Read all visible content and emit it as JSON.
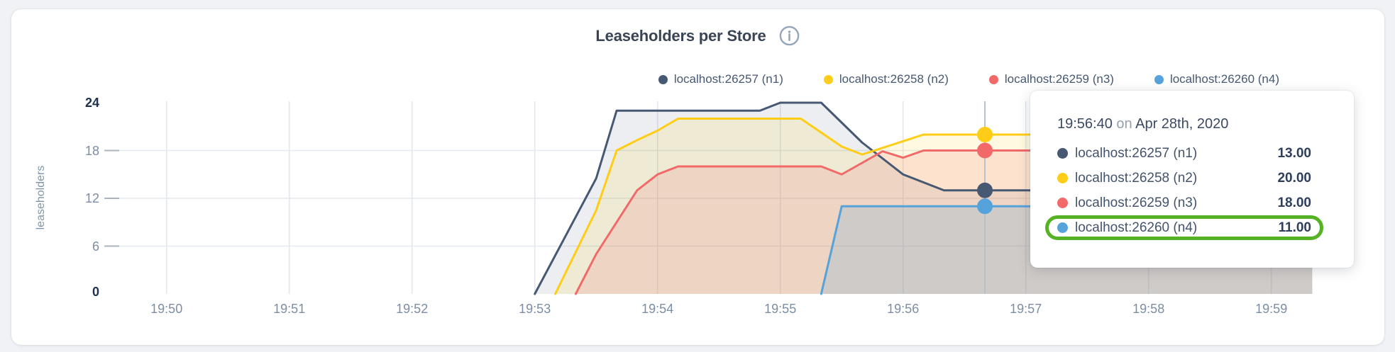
{
  "page": {
    "background": "#F0F2F5"
  },
  "chart": {
    "title": "Leaseholders per Store",
    "y_axis_title": "leaseholders",
    "info_icon_color": "#95A5BC"
  },
  "chart_data": {
    "type": "area",
    "title": "Leaseholders per Store",
    "ylabel": "leaseholders",
    "xlabel": "",
    "x_ticks": [
      "19:50",
      "19:51",
      "19:52",
      "19:53",
      "19:54",
      "19:55",
      "19:56",
      "19:57",
      "19:58",
      "19:59"
    ],
    "y_ticks": [
      0,
      6,
      12,
      18,
      24
    ],
    "ylim": [
      0,
      24
    ],
    "grid": true,
    "legend_position": "top-right",
    "series": [
      {
        "name": "localhost:26257 (n1)",
        "color": "#475872",
        "fill_opacity": 0.1,
        "points": [
          [
            "19:53:00",
            0
          ],
          [
            "19:53:30",
            14.5
          ],
          [
            "19:53:40",
            23
          ],
          [
            "19:54:50",
            23
          ],
          [
            "19:55:00",
            24
          ],
          [
            "19:55:20",
            24
          ],
          [
            "19:55:30",
            21.5
          ],
          [
            "19:55:40",
            19
          ],
          [
            "19:55:50",
            17
          ],
          [
            "19:56:00",
            15
          ],
          [
            "19:56:20",
            13
          ],
          [
            "19:59:20",
            13
          ]
        ]
      },
      {
        "name": "localhost:26258 (n2)",
        "color": "#FFCD17",
        "fill_opacity": 0.13,
        "points": [
          [
            "19:53:10",
            0
          ],
          [
            "19:53:30",
            10.5
          ],
          [
            "19:53:40",
            18
          ],
          [
            "19:53:50",
            19.3
          ],
          [
            "19:54:00",
            20.5
          ],
          [
            "19:54:10",
            22
          ],
          [
            "19:55:10",
            22
          ],
          [
            "19:55:30",
            18.5
          ],
          [
            "19:55:40",
            17.5
          ],
          [
            "19:56:10",
            20
          ],
          [
            "19:59:20",
            20
          ]
        ]
      },
      {
        "name": "localhost:26259 (n3)",
        "color": "#F16969",
        "fill_opacity": 0.16,
        "points": [
          [
            "19:53:20",
            0
          ],
          [
            "19:53:30",
            5
          ],
          [
            "19:53:50",
            13
          ],
          [
            "19:54:00",
            15
          ],
          [
            "19:54:10",
            16
          ],
          [
            "19:55:20",
            16
          ],
          [
            "19:55:30",
            15
          ],
          [
            "19:55:50",
            17.9
          ],
          [
            "19:56:00",
            17.1
          ],
          [
            "19:56:10",
            18
          ],
          [
            "19:59:20",
            18
          ]
        ]
      },
      {
        "name": "localhost:26260 (n4)",
        "color": "#56A3DB",
        "fill_opacity": 0.2,
        "points": [
          [
            "19:55:20",
            0
          ],
          [
            "19:55:30",
            11
          ],
          [
            "19:59:20",
            11
          ]
        ]
      }
    ],
    "hover": {
      "time": "19:56:40",
      "values": [
        13,
        20,
        18,
        11
      ]
    }
  },
  "tooltip": {
    "time": "19:56:40",
    "connector": "on",
    "date": "Apr 28th, 2020",
    "rows": [
      {
        "label": "localhost:26257 (n1)",
        "value": "13.00",
        "color": "#475872",
        "highlighted": false
      },
      {
        "label": "localhost:26258 (n2)",
        "value": "20.00",
        "color": "#FFCD17",
        "highlighted": false
      },
      {
        "label": "localhost:26259 (n3)",
        "value": "18.00",
        "color": "#F16969",
        "highlighted": false
      },
      {
        "label": "localhost:26260 (n4)",
        "value": "11.00",
        "color": "#56A3DB",
        "highlighted": true
      }
    ],
    "highlight_color": "#54B224"
  }
}
